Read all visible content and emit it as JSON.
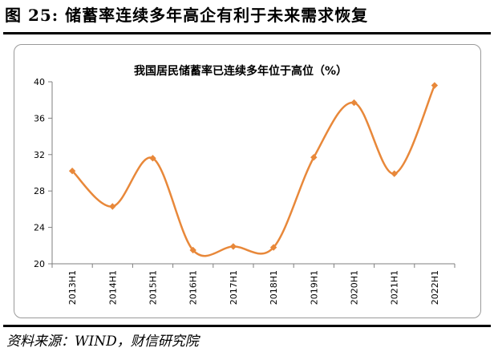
{
  "figure": {
    "title": "图 25:  储蓄率连续多年高企有利于未来需求恢复",
    "source": "资料来源：WIND，财信研究院"
  },
  "colors": {
    "series": "#E8883A",
    "axis": "#7f7f7f",
    "text": "#000000"
  },
  "chart_data": {
    "type": "line",
    "title": "我国居民储蓄率已连续多年位于高位（%）",
    "xlabel": "",
    "ylabel": "",
    "categories": [
      "2013H1",
      "2014H1",
      "2015H1",
      "2016H1",
      "2017H1",
      "2018H1",
      "2019H1",
      "2020H1",
      "2021H1",
      "2022H1"
    ],
    "series": [
      {
        "values": [
          30.2,
          26.3,
          31.6,
          21.5,
          21.9,
          21.8,
          31.7,
          37.7,
          29.9,
          39.6
        ]
      }
    ],
    "ylim": [
      20,
      40
    ],
    "yticks": [
      20,
      24,
      28,
      32,
      36,
      40
    ],
    "grid": false,
    "legend": "none",
    "smooth": true,
    "marker": "diamond"
  }
}
